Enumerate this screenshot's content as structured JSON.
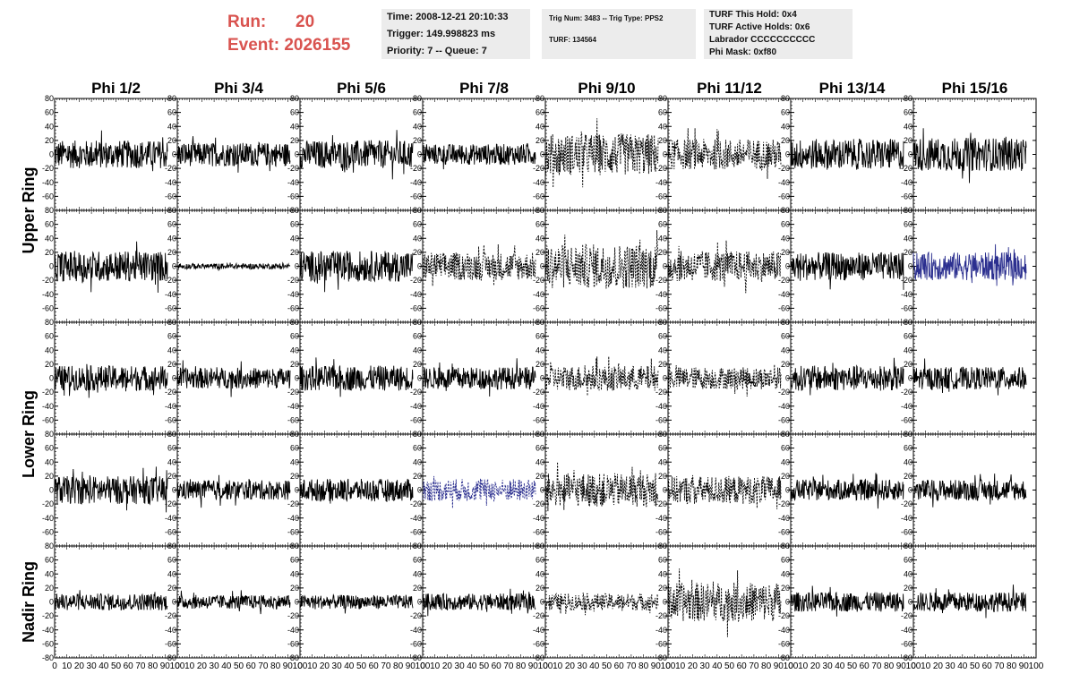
{
  "header": {
    "run_label": "Run:",
    "run_value": "20",
    "event_label": "Event:",
    "event_value": "2026155",
    "time": "Time: 2008-12-21 20:10:33",
    "trigger": "Trigger: 149.998823 ms",
    "priority": "Priority: 7 -- Queue: 7",
    "trig_num": "Trig Num: 3483 -- Trig Type: PPS2",
    "turf": "TURF: 134564",
    "turf_this_hold": "TURF This Hold: 0x4",
    "turf_active_holds": "TURF Active Holds: 0x6",
    "labrador": "Labrador CCCCCCCCCC",
    "phi_mask": "Phi Mask: 0xf80"
  },
  "colors": {
    "run_text": "#d9534f",
    "trace": "#000000",
    "highlight_trace": "#2b2f8f",
    "info_box": "#ececec"
  },
  "chart_data": {
    "type": "line",
    "columns": [
      "Phi 1/2",
      "Phi 3/4",
      "Phi 5/6",
      "Phi 7/8",
      "Phi 9/10",
      "Phi 11/12",
      "Phi 13/14",
      "Phi 15/16"
    ],
    "ring_labels": [
      "Upper Ring",
      "Lower Ring",
      "Nadir Ring"
    ],
    "rows": 5,
    "ring_label_rows": [
      [
        0,
        1
      ],
      [
        2,
        3
      ],
      [
        4,
        4
      ]
    ],
    "xlim": [
      0,
      100
    ],
    "ylim": [
      -80,
      80
    ],
    "yticks": [
      80,
      60,
      40,
      20,
      0,
      -20,
      -40,
      -60
    ],
    "yticks_last_row": [
      80,
      60,
      40,
      20,
      0,
      -20,
      -40,
      -60,
      -80
    ],
    "xtick_labels": [
      "0",
      "10",
      "20",
      "30",
      "40",
      "50",
      "60",
      "70",
      "80",
      "90",
      "100"
    ],
    "trace_x_range": [
      0,
      92
    ],
    "panels": [
      [
        {
          "amp": 20,
          "style": "solid"
        },
        {
          "amp": 17,
          "style": "solid"
        },
        {
          "amp": 20,
          "style": "solid"
        },
        {
          "amp": 15,
          "style": "solid"
        },
        {
          "amp": 30,
          "style": "dashed"
        },
        {
          "amp": 22,
          "style": "dashed"
        },
        {
          "amp": 22,
          "style": "solid"
        },
        {
          "amp": 24,
          "style": "solid"
        }
      ],
      [
        {
          "amp": 22,
          "style": "solid"
        },
        {
          "amp": 4,
          "style": "solid"
        },
        {
          "amp": 22,
          "style": "solid"
        },
        {
          "amp": 20,
          "style": "dashed"
        },
        {
          "amp": 32,
          "style": "dashed"
        },
        {
          "amp": 22,
          "style": "dashed"
        },
        {
          "amp": 20,
          "style": "solid"
        },
        {
          "amp": 20,
          "style": "solid",
          "highlight": true
        }
      ],
      [
        {
          "amp": 18,
          "style": "solid"
        },
        {
          "amp": 15,
          "style": "solid"
        },
        {
          "amp": 18,
          "style": "solid"
        },
        {
          "amp": 16,
          "style": "solid"
        },
        {
          "amp": 18,
          "style": "dashed"
        },
        {
          "amp": 16,
          "style": "dashed"
        },
        {
          "amp": 18,
          "style": "solid"
        },
        {
          "amp": 16,
          "style": "solid"
        }
      ],
      [
        {
          "amp": 20,
          "style": "solid"
        },
        {
          "amp": 14,
          "style": "solid"
        },
        {
          "amp": 16,
          "style": "solid"
        },
        {
          "amp": 16,
          "style": "dashed",
          "highlight": true
        },
        {
          "amp": 24,
          "style": "dashed"
        },
        {
          "amp": 20,
          "style": "dashed"
        },
        {
          "amp": 15,
          "style": "solid"
        },
        {
          "amp": 15,
          "style": "solid"
        }
      ],
      [
        {
          "amp": 12,
          "style": "solid"
        },
        {
          "amp": 10,
          "style": "solid"
        },
        {
          "amp": 10,
          "style": "solid"
        },
        {
          "amp": 12,
          "style": "solid"
        },
        {
          "amp": 12,
          "style": "dashed"
        },
        {
          "amp": 28,
          "style": "dashed"
        },
        {
          "amp": 14,
          "style": "solid"
        },
        {
          "amp": 14,
          "style": "solid"
        }
      ]
    ]
  }
}
